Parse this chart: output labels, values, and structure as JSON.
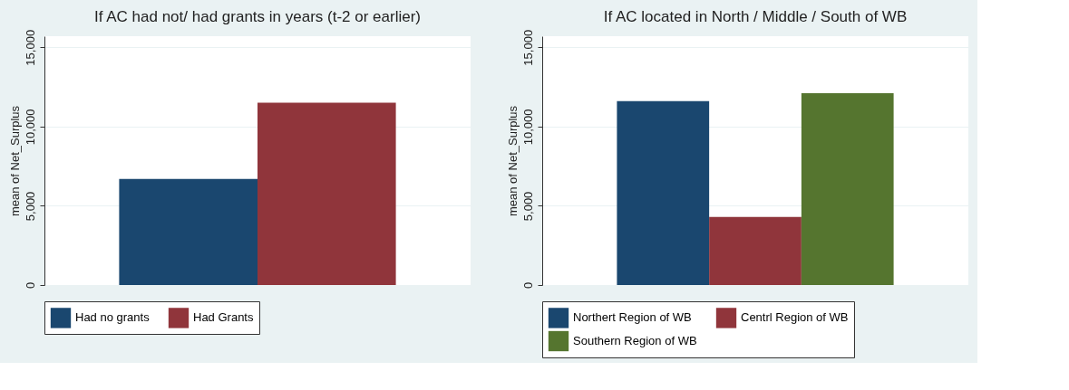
{
  "chart_data": [
    {
      "type": "bar",
      "title": "If AC had not/ had grants in years (t-2 or earlier)",
      "ylabel": "mean of Net_Surplus",
      "categories": [
        null
      ],
      "series": [
        {
          "name": "Had no grants",
          "color": "#1a476f",
          "values": [
            6700
          ]
        },
        {
          "name": "Had Grants",
          "color": "#90353b",
          "values": [
            11500
          ]
        }
      ],
      "ylim": [
        0,
        15700
      ],
      "yticks": [
        {
          "value": 0,
          "label": "0"
        },
        {
          "value": 5000,
          "label": "5,000"
        },
        {
          "value": 10000,
          "label": "10,000"
        },
        {
          "value": 15000,
          "label": "15,000"
        }
      ],
      "grid": "y",
      "legend": "bottom"
    },
    {
      "type": "bar",
      "title": "If AC located in North / Middle / South of WB",
      "ylabel": "mean of Net_Surplus",
      "categories": [
        null
      ],
      "series": [
        {
          "name": "Northert Region of WB",
          "color": "#1a476f",
          "values": [
            11600
          ]
        },
        {
          "name": "Centrl Region of WB",
          "color": "#90353b",
          "values": [
            4300
          ]
        },
        {
          "name": "Southern Region of WB",
          "color": "#55752f",
          "values": [
            12100
          ]
        }
      ],
      "ylim": [
        0,
        15700
      ],
      "yticks": [
        {
          "value": 0,
          "label": "0"
        },
        {
          "value": 5000,
          "label": "5,000"
        },
        {
          "value": 10000,
          "label": "10,000"
        },
        {
          "value": 15000,
          "label": "15,000"
        }
      ],
      "grid": "y",
      "legend": "bottom"
    }
  ]
}
